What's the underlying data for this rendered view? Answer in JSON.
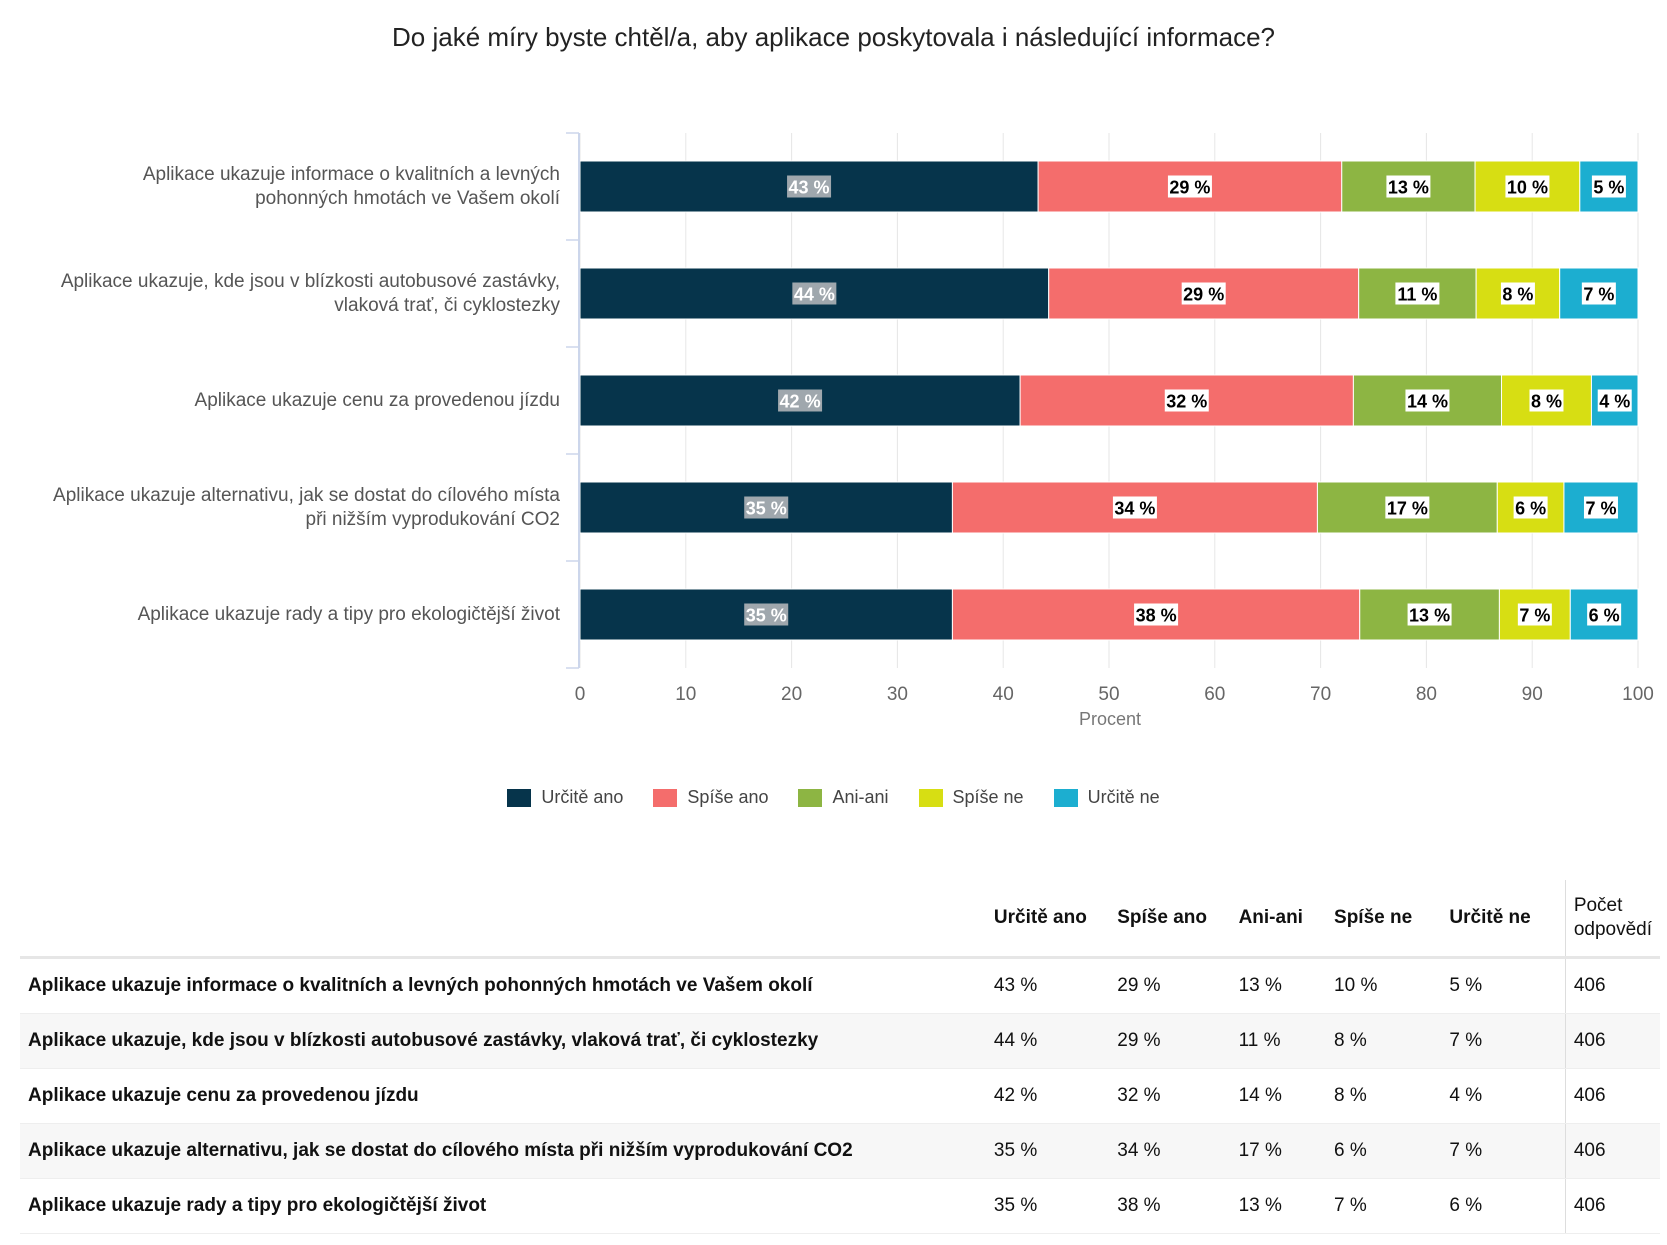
{
  "chart_data": {
    "type": "bar",
    "orientation": "horizontal",
    "stacked": true,
    "title": "Do jaké míry byste chtěl/a, aby aplikace poskytovala i následující informace?",
    "xlabel": "Procent",
    "xlim": [
      0,
      100
    ],
    "xticks": [
      "0",
      "10",
      "20",
      "30",
      "40",
      "50",
      "60",
      "70",
      "80",
      "90",
      "100"
    ],
    "legend_position": "bottom",
    "categories": [
      [
        "Aplikace ukazuje informace o kvalitních a levných",
        "pohonných hmotách ve Vašem okolí"
      ],
      [
        "Aplikace ukazuje, kde jsou v blízkosti autobusové zastávky,",
        "vlaková trať, či cyklostezky"
      ],
      [
        "Aplikace ukazuje cenu za provedenou jízdu"
      ],
      [
        "Aplikace ukazuje alternativu, jak se dostat do cílového místa",
        "při nižším vyprodukování CO2"
      ],
      [
        "Aplikace ukazuje rady a tipy pro ekologičtější život"
      ]
    ],
    "series": [
      {
        "name": "Určitě ano",
        "color": "#06344b",
        "values": [
          43.3,
          44.3,
          41.6,
          35.2,
          35.2
        ],
        "labels": [
          "43 %",
          "44 %",
          "42 %",
          "35 %",
          "35 %"
        ]
      },
      {
        "name": "Spíše ano",
        "color": "#f46d6c",
        "values": [
          28.7,
          29.3,
          31.5,
          34.5,
          38.5
        ],
        "labels": [
          "29 %",
          "29 %",
          "32 %",
          "34 %",
          "38 %"
        ]
      },
      {
        "name": "Ani-ani",
        "color": "#8db543",
        "values": [
          12.6,
          11.1,
          14.0,
          17.0,
          13.2
        ],
        "labels": [
          "13 %",
          "11 %",
          "14 %",
          "17 %",
          "13 %"
        ]
      },
      {
        "name": "Spíše ne",
        "color": "#d7de13",
        "values": [
          9.9,
          7.9,
          8.5,
          6.3,
          6.7
        ],
        "labels": [
          "10 %",
          "8 %",
          "8 %",
          "6 %",
          "7 %"
        ]
      },
      {
        "name": "Určitě ne",
        "color": "#1caed0",
        "values": [
          5.5,
          7.4,
          4.4,
          7.0,
          6.4
        ],
        "labels": [
          "5 %",
          "7 %",
          "4 %",
          "7 %",
          "6 %"
        ]
      }
    ]
  },
  "table": {
    "headers": [
      "Určitě ano",
      "Spíše ano",
      "Ani-ani",
      "Spíše ne",
      "Určitě ne"
    ],
    "count_header": [
      "Počet",
      "odpovědí"
    ],
    "rows": [
      {
        "label": "Aplikace ukazuje informace o kvalitních a levných pohonných hmotách ve Vašem okolí",
        "values": [
          "43 %",
          "29 %",
          "13 %",
          "10 %",
          "5 %"
        ],
        "count": "406"
      },
      {
        "label": "Aplikace ukazuje, kde jsou v blízkosti autobusové zastávky, vlaková trať, či cyklostezky",
        "values": [
          "44 %",
          "29 %",
          "11 %",
          "8 %",
          "7 %"
        ],
        "count": "406"
      },
      {
        "label": "Aplikace ukazuje cenu za provedenou jízdu",
        "values": [
          "42 %",
          "32 %",
          "14 %",
          "8 %",
          "4 %"
        ],
        "count": "406"
      },
      {
        "label": "Aplikace ukazuje alternativu, jak se dostat do cílového místa při nižším vyprodukování CO2",
        "values": [
          "35 %",
          "34 %",
          "17 %",
          "6 %",
          "7 %"
        ],
        "count": "406"
      },
      {
        "label": "Aplikace ukazuje rady a tipy pro ekologičtější život",
        "values": [
          "35 %",
          "38 %",
          "13 %",
          "7 %",
          "6 %"
        ],
        "count": "406"
      }
    ]
  }
}
